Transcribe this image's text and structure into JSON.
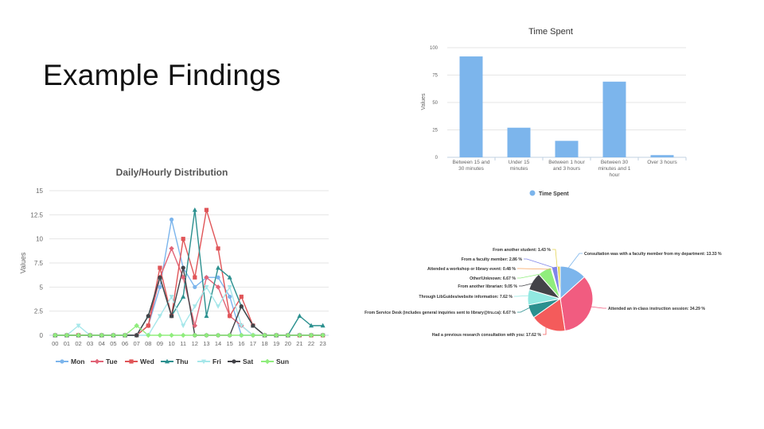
{
  "slide": {
    "title": "Example Findings"
  },
  "colors": {
    "mon": "#7cb5ec",
    "tue": "#e16477",
    "wed": "#e05558",
    "thu": "#2b908f",
    "fri": "#a6e7ea",
    "sat": "#434348",
    "sun": "#90ed7d",
    "bar": "#7cb5ec"
  },
  "chart_data": [
    {
      "type": "bar",
      "title": "Time Spent",
      "ylabel": "Values",
      "categories": [
        "Between 15 and 30 minutes",
        "Under 15 minutes",
        "Between 1 hour and 3 hours",
        "Between 30 minutes and 1 hour",
        "Over 3 hours"
      ],
      "series": [
        {
          "name": "Time Spent",
          "values": [
            92,
            27,
            15,
            69,
            2
          ]
        }
      ],
      "ylim": [
        0,
        100
      ],
      "yticks": [
        "0",
        "25",
        "50",
        "75",
        "100"
      ],
      "grid": true,
      "legend": "bottom"
    },
    {
      "type": "line",
      "title": "Daily/Hourly Distribution",
      "ylabel": "Values",
      "x": [
        "00",
        "01",
        "02",
        "03",
        "04",
        "05",
        "06",
        "07",
        "08",
        "09",
        "10",
        "11",
        "12",
        "13",
        "14",
        "15",
        "16",
        "17",
        "18",
        "19",
        "20",
        "21",
        "22",
        "23"
      ],
      "ylim": [
        0,
        15
      ],
      "yticks": [
        "0",
        "2.5",
        "5",
        "7.5",
        "10",
        "12.5",
        "15"
      ],
      "grid": true,
      "legend": "bottom",
      "series": [
        {
          "name": "Mon",
          "values": [
            0,
            0,
            0,
            0,
            0,
            0,
            0,
            0,
            1,
            5,
            12,
            7,
            5,
            6,
            6,
            4,
            0,
            0,
            0,
            0,
            0,
            0,
            0,
            0
          ]
        },
        {
          "name": "Tue",
          "values": [
            0,
            0,
            0,
            0,
            0,
            0,
            0,
            0,
            1,
            6,
            9,
            6,
            1,
            6,
            5,
            2,
            1,
            0,
            0,
            0,
            0,
            0,
            0,
            0
          ]
        },
        {
          "name": "Wed",
          "values": [
            0,
            0,
            0,
            0,
            0,
            0,
            0,
            0,
            1,
            7,
            2,
            10,
            6,
            13,
            9,
            2,
            4,
            1,
            0,
            0,
            0,
            0,
            0,
            0
          ]
        },
        {
          "name": "Thu",
          "values": [
            0,
            0,
            0,
            0,
            0,
            0,
            0,
            0,
            2,
            6,
            2,
            4,
            13,
            2,
            7,
            6,
            3,
            1,
            0,
            0,
            0,
            2,
            1,
            1
          ]
        },
        {
          "name": "Fri",
          "values": [
            0,
            0,
            1,
            0,
            0,
            0,
            0,
            0,
            0,
            2,
            4,
            1,
            3,
            5,
            3,
            5,
            1,
            0,
            0,
            0,
            0,
            0,
            0,
            0
          ]
        },
        {
          "name": "Sat",
          "values": [
            0,
            0,
            0,
            0,
            0,
            0,
            0,
            0,
            2,
            6,
            2,
            7,
            0,
            0,
            0,
            0,
            3,
            1,
            0,
            0,
            0,
            0,
            0,
            0
          ]
        },
        {
          "name": "Sun",
          "values": [
            0,
            0,
            0,
            0,
            0,
            0,
            0,
            1,
            0,
            0,
            0,
            0,
            0,
            0,
            0,
            0,
            0,
            0,
            0,
            0,
            0,
            0,
            0,
            0
          ]
        }
      ]
    },
    {
      "type": "pie",
      "slices": [
        {
          "label": "Consultation was with a faculty member from my department: 13.33 %",
          "value": 13.33,
          "color": "#7cb5ec"
        },
        {
          "label": "Attended an in-class instruction session: 34.29 %",
          "value": 34.29,
          "color": "#f15c80"
        },
        {
          "label": "Had a previous research consultation with you: 17.62 %",
          "value": 17.62,
          "color": "#f45b5b"
        },
        {
          "label": "From Service Desk (includes general inquiries sent to library@tru.ca): 6.67 %",
          "value": 6.67,
          "color": "#2b908f"
        },
        {
          "label": "Through LibGuides/website information: 7.62 %",
          "value": 7.62,
          "color": "#91e8e1"
        },
        {
          "label": "From another librarian: 9.05 %",
          "value": 9.05,
          "color": "#434348"
        },
        {
          "label": "Other/Unknown: 6.67 %",
          "value": 6.67,
          "color": "#90ed7d"
        },
        {
          "label": "Attended a workshop or library event: 0.48 %",
          "value": 0.48,
          "color": "#f7a35c"
        },
        {
          "label": "From a faculty member: 2.86 %",
          "value": 2.86,
          "color": "#8085e9"
        },
        {
          "label": "From another student: 1.43 %",
          "value": 1.43,
          "color": "#e4d354"
        }
      ]
    }
  ]
}
